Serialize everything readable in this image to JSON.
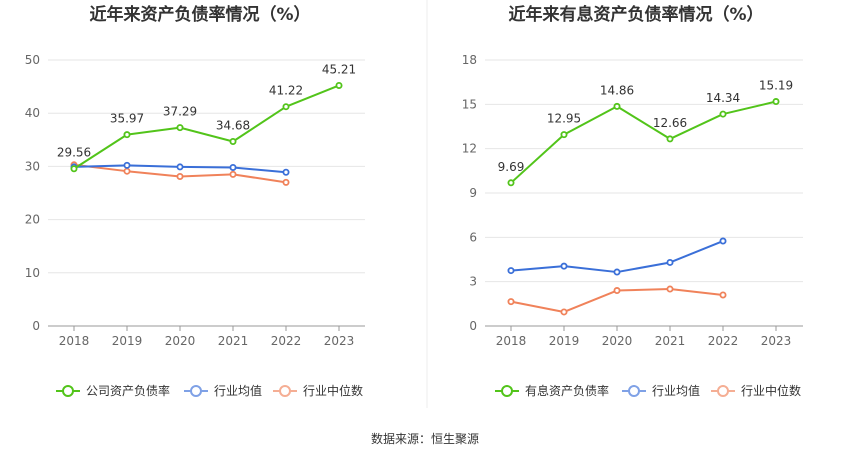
{
  "footer": {
    "source": "数据来源：恒生聚源"
  },
  "chart_data": [
    {
      "type": "line",
      "title": "近年来资产负债率情况（%）",
      "categories": [
        "2018",
        "2019",
        "2020",
        "2021",
        "2022",
        "2023"
      ],
      "yticks": [
        "0",
        "10",
        "20",
        "30",
        "40",
        "50"
      ],
      "ylim": [
        0,
        50
      ],
      "grid": true,
      "legend_position": "bottom",
      "series": [
        {
          "name": "公司资产负债率",
          "color": "#52c41a",
          "labeled": true,
          "values": [
            29.56,
            35.97,
            37.29,
            34.68,
            41.22,
            45.21
          ],
          "labels": [
            "29.56",
            "35.97",
            "37.29",
            "34.68",
            "41.22",
            "45.21"
          ]
        },
        {
          "name": "行业均值",
          "color": "#3a6fd8",
          "labeled": false,
          "values": [
            29.9,
            30.2,
            29.9,
            29.8,
            28.9,
            null
          ]
        },
        {
          "name": "行业中位数",
          "color": "#f0825a",
          "labeled": false,
          "values": [
            30.3,
            29.1,
            28.1,
            28.5,
            27.0,
            null
          ]
        }
      ]
    },
    {
      "type": "line",
      "title": "近年来有息资产负债率情况（%）",
      "categories": [
        "2018",
        "2019",
        "2020",
        "2021",
        "2022",
        "2023"
      ],
      "yticks": [
        "0",
        "3",
        "6",
        "9",
        "12",
        "15",
        "18"
      ],
      "ylim": [
        0,
        18
      ],
      "grid": true,
      "legend_position": "bottom",
      "series": [
        {
          "name": "有息资产负债率",
          "color": "#52c41a",
          "labeled": true,
          "values": [
            9.69,
            12.95,
            14.86,
            12.66,
            14.34,
            15.19
          ],
          "labels": [
            "9.69",
            "12.95",
            "14.86",
            "12.66",
            "14.34",
            "15.19"
          ]
        },
        {
          "name": "行业均值",
          "color": "#3a6fd8",
          "labeled": false,
          "values": [
            3.75,
            4.05,
            3.65,
            4.3,
            5.75,
            null
          ]
        },
        {
          "name": "行业中位数",
          "color": "#f0825a",
          "labeled": false,
          "values": [
            1.65,
            0.95,
            2.4,
            2.5,
            2.1,
            null
          ]
        }
      ]
    }
  ]
}
